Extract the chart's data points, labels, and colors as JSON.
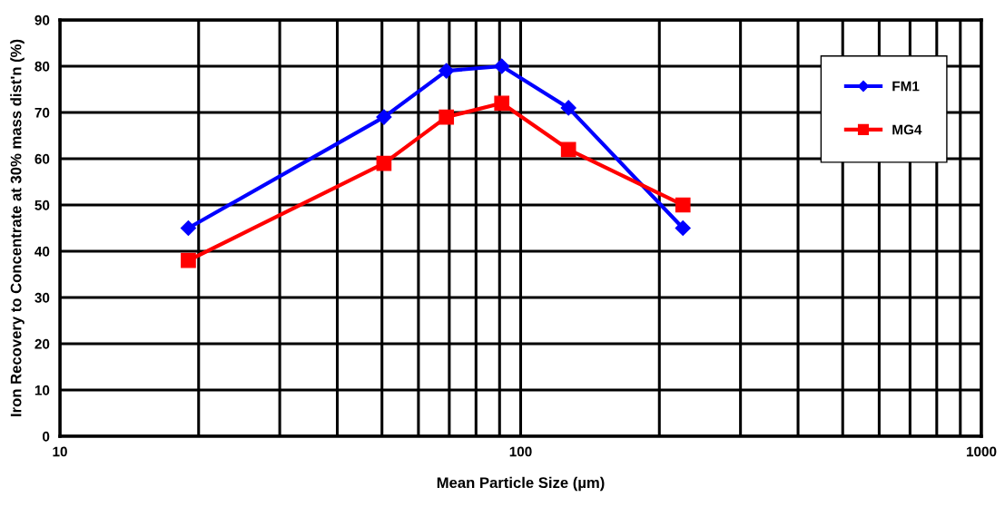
{
  "chart_data": {
    "type": "line",
    "xlabel": "Mean Particle Size (µm)",
    "ylabel": "Iron Recovery to Concentrate at 30% mass dist'n (%)",
    "log": "x",
    "grid": true,
    "legend": "top right",
    "line_style": "solid",
    "xlim": [
      10,
      1000
    ],
    "xticks": [
      10,
      {
        "value": 20,
        "label": null
      },
      {
        "value": 30,
        "label": null
      },
      {
        "value": 40,
        "label": null
      },
      {
        "value": 50,
        "label": null
      },
      {
        "value": 60,
        "label": null
      },
      {
        "value": 70,
        "label": null
      },
      {
        "value": 80,
        "label": null
      },
      {
        "value": 90,
        "label": null
      },
      100,
      {
        "value": 200,
        "label": null
      },
      {
        "value": 300,
        "label": null
      },
      {
        "value": 400,
        "label": null
      },
      {
        "value": 500,
        "label": null
      },
      {
        "value": 600,
        "label": null
      },
      {
        "value": 700,
        "label": null
      },
      {
        "value": 800,
        "label": null
      },
      {
        "value": 900,
        "label": null
      },
      1000
    ],
    "ylim": [
      0,
      90
    ],
    "yticks": [
      0,
      10,
      20,
      30,
      40,
      50,
      60,
      70,
      80,
      90
    ],
    "series": [
      {
        "name": "FM1",
        "color": "#0000ff",
        "marker": "diamond",
        "x": [
          19,
          50.5,
          69,
          91,
          127,
          225
        ],
        "values": [
          45,
          69,
          79,
          80,
          71,
          45
        ]
      },
      {
        "name": "MG4",
        "color": "#ff0000",
        "marker": "square",
        "x": [
          19,
          50.5,
          69,
          91,
          127,
          225
        ],
        "values": [
          38,
          59,
          69,
          72,
          62,
          50
        ]
      }
    ]
  }
}
